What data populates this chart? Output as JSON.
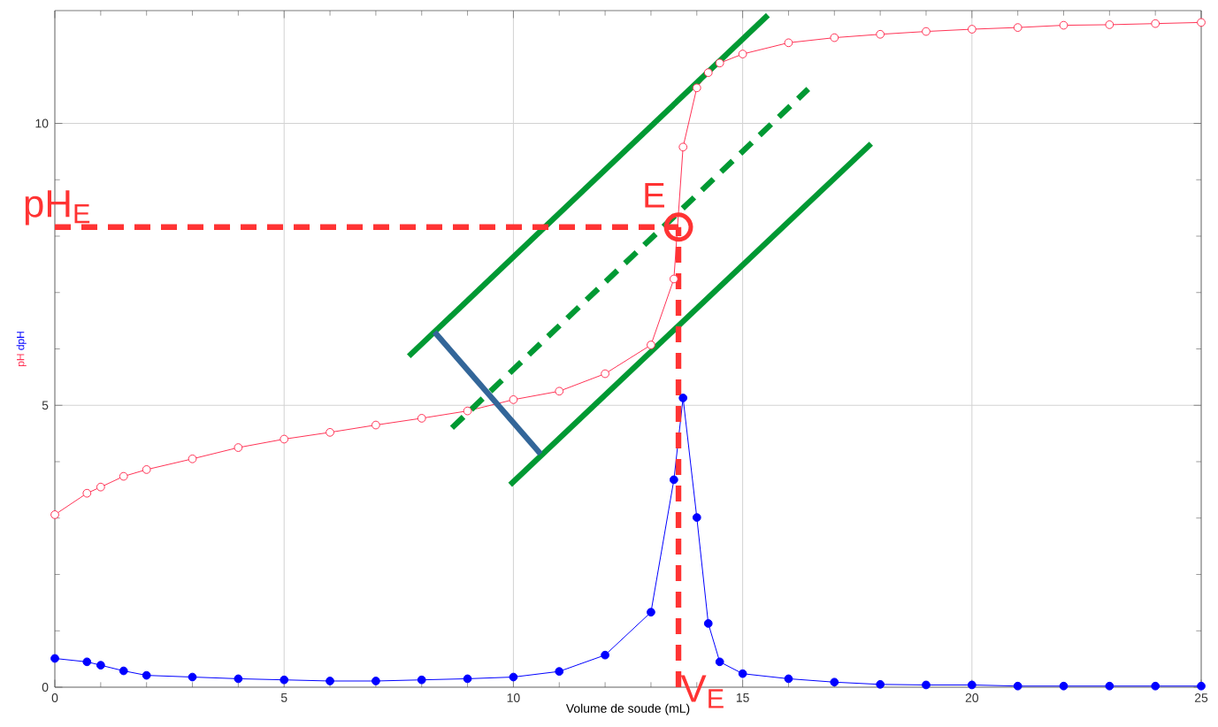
{
  "chart_data": {
    "type": "line",
    "xlabel": "Volume de soude  (mL)",
    "xlim": [
      0,
      25
    ],
    "ylim": [
      0,
      12
    ],
    "xticks": [
      0,
      5,
      10,
      15,
      20,
      25
    ],
    "yticks": [
      0,
      5,
      10
    ],
    "grid": true,
    "series": [
      {
        "name": "pH",
        "color": "#ff3355",
        "marker": "circle",
        "line_style": "solid",
        "x": [
          0,
          0.7,
          1,
          1.5,
          2,
          3,
          4,
          5,
          6,
          7,
          8,
          9,
          10,
          11,
          12,
          13,
          13.5,
          13.7,
          14,
          14.25,
          14.5,
          15,
          16,
          17,
          18,
          19,
          20,
          21,
          22,
          23,
          24,
          25
        ],
        "values": [
          3.06,
          3.44,
          3.55,
          3.74,
          3.86,
          4.05,
          4.25,
          4.4,
          4.52,
          4.65,
          4.77,
          4.9,
          5.1,
          5.25,
          5.56,
          6.07,
          7.24,
          9.58,
          10.63,
          10.9,
          11.07,
          11.23,
          11.43,
          11.52,
          11.58,
          11.63,
          11.67,
          11.7,
          11.74,
          11.75,
          11.77,
          11.79
        ]
      },
      {
        "name": "dpH",
        "color": "#0000ff",
        "marker": "circle",
        "line_style": "solid",
        "x": [
          0,
          0.7,
          1,
          1.5,
          2,
          3,
          4,
          5,
          6,
          7,
          8,
          9,
          10,
          11,
          12,
          13,
          13.5,
          13.7,
          14,
          14.25,
          14.5,
          15,
          16,
          17,
          18,
          19,
          20,
          21,
          22,
          23,
          24,
          25
        ],
        "values": [
          0.51,
          0.45,
          0.39,
          0.29,
          0.21,
          0.18,
          0.15,
          0.13,
          0.11,
          0.11,
          0.13,
          0.15,
          0.18,
          0.28,
          0.57,
          1.33,
          3.68,
          5.13,
          3.01,
          1.13,
          0.45,
          0.24,
          0.15,
          0.09,
          0.05,
          0.04,
          0.04,
          0.02,
          0.02,
          0.02,
          0.02,
          0.02
        ]
      },
      {
        "type": "line",
        "color": "#009933",
        "marker": "none",
        "line_style": "solid",
        "x": [
          7.72,
          15.55
        ],
        "values": [
          5.87,
          11.92
        ]
      },
      {
        "type": "line",
        "color": "#009933",
        "marker": "none",
        "line_style": "dashed",
        "x": [
          8.66,
          16.43
        ],
        "values": [
          4.6,
          10.61
        ]
      },
      {
        "type": "line",
        "color": "#009933",
        "marker": "none",
        "line_style": "solid",
        "x": [
          9.93,
          17.8
        ],
        "values": [
          3.59,
          9.64
        ]
      },
      {
        "type": "line",
        "color": "#336699",
        "marker": "none",
        "line_style": "solid",
        "x": [
          8.28,
          10.59
        ],
        "values": [
          6.3,
          4.14
        ]
      },
      {
        "type": "scatter",
        "color": "#ff3333",
        "marker": "circle",
        "x": [
          13.6
        ],
        "values": [
          8.16
        ]
      }
    ],
    "ref_lines": [
      {
        "axis": "y",
        "value": 8.16,
        "label": "pH$_{E}$",
        "color": "#ff3333",
        "line_style": "dashed"
      },
      {
        "axis": "x",
        "value": 13.6,
        "label": "V$_{E}$",
        "color": "#ff3333",
        "line_style": "dashed"
      }
    ],
    "annotations": [
      {
        "text": "E",
        "x": 13.6,
        "y": 8.16
      }
    ]
  }
}
